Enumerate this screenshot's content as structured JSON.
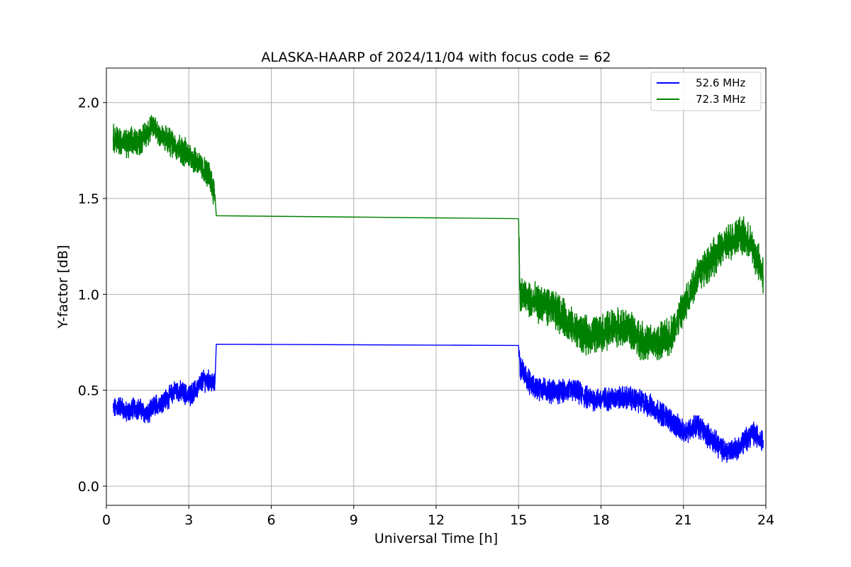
{
  "chart_data": {
    "type": "line",
    "title": "ALASKA-HAARP of 2024/11/04 with focus code = 62",
    "xlabel": "Universal Time [h]",
    "ylabel": "Y-factor [dB]",
    "xlim": [
      0,
      24
    ],
    "ylim": [
      -0.1,
      2.18
    ],
    "xticks": [
      0,
      3,
      6,
      9,
      12,
      15,
      18,
      21,
      24
    ],
    "xtick_labels": [
      "0",
      "3",
      "6",
      "9",
      "12",
      "15",
      "18",
      "21",
      "24"
    ],
    "yticks": [
      0.0,
      0.5,
      1.0,
      1.5,
      2.0
    ],
    "ytick_labels": [
      "0.0",
      "0.5",
      "1.0",
      "1.5",
      "2.0"
    ],
    "grid": true,
    "legend_position": "upper right",
    "series": [
      {
        "name": "52.6 MHz",
        "color": "#0000ff",
        "points": [
          [
            0.25,
            0.4
          ],
          [
            0.5,
            0.42
          ],
          [
            0.75,
            0.38
          ],
          [
            1.0,
            0.41
          ],
          [
            1.25,
            0.4
          ],
          [
            1.5,
            0.37
          ],
          [
            1.75,
            0.42
          ],
          [
            2.0,
            0.44
          ],
          [
            2.25,
            0.46
          ],
          [
            2.5,
            0.5
          ],
          [
            2.75,
            0.49
          ],
          [
            3.0,
            0.47
          ],
          [
            3.25,
            0.5
          ],
          [
            3.5,
            0.55
          ],
          [
            3.75,
            0.55
          ],
          [
            3.95,
            0.53
          ],
          [
            4.0,
            0.74
          ],
          [
            15.0,
            0.75
          ],
          [
            15.05,
            0.62
          ],
          [
            15.5,
            0.52
          ],
          [
            16.0,
            0.5
          ],
          [
            16.5,
            0.49
          ],
          [
            17.0,
            0.5
          ],
          [
            17.5,
            0.46
          ],
          [
            18.0,
            0.45
          ],
          [
            18.5,
            0.46
          ],
          [
            19.0,
            0.46
          ],
          [
            19.5,
            0.44
          ],
          [
            20.0,
            0.4
          ],
          [
            20.5,
            0.35
          ],
          [
            21.0,
            0.28
          ],
          [
            21.5,
            0.32
          ],
          [
            22.0,
            0.25
          ],
          [
            22.5,
            0.18
          ],
          [
            23.0,
            0.2
          ],
          [
            23.5,
            0.28
          ],
          [
            23.9,
            0.24
          ]
        ],
        "noise": [
          0.045,
          0.045,
          0.045,
          0.045,
          0.045,
          0.045,
          0.045,
          0.045,
          0.045,
          0.045,
          0.045,
          0.045,
          0.045,
          0.045,
          0.045,
          0.045,
          0.0,
          0.0,
          0.05,
          0.05,
          0.05,
          0.05,
          0.05,
          0.05,
          0.05,
          0.05,
          0.05,
          0.05,
          0.05,
          0.05,
          0.05,
          0.05,
          0.05,
          0.05,
          0.05,
          0.05,
          0.05
        ]
      },
      {
        "name": "72.3 MHz",
        "color": "#008000",
        "points": [
          [
            0.25,
            1.82
          ],
          [
            0.5,
            1.8
          ],
          [
            0.75,
            1.78
          ],
          [
            1.0,
            1.8
          ],
          [
            1.25,
            1.8
          ],
          [
            1.5,
            1.85
          ],
          [
            1.75,
            1.88
          ],
          [
            2.0,
            1.82
          ],
          [
            2.25,
            1.8
          ],
          [
            2.5,
            1.78
          ],
          [
            2.75,
            1.75
          ],
          [
            3.0,
            1.73
          ],
          [
            3.25,
            1.7
          ],
          [
            3.5,
            1.65
          ],
          [
            3.75,
            1.62
          ],
          [
            3.95,
            1.52
          ],
          [
            4.0,
            1.41
          ],
          [
            15.0,
            1.41
          ],
          [
            15.05,
            1.0
          ],
          [
            15.5,
            0.96
          ],
          [
            16.0,
            0.94
          ],
          [
            16.5,
            0.9
          ],
          [
            17.0,
            0.82
          ],
          [
            17.5,
            0.78
          ],
          [
            18.0,
            0.8
          ],
          [
            18.5,
            0.83
          ],
          [
            19.0,
            0.82
          ],
          [
            19.5,
            0.76
          ],
          [
            20.0,
            0.74
          ],
          [
            20.5,
            0.78
          ],
          [
            21.0,
            0.92
          ],
          [
            21.5,
            1.1
          ],
          [
            22.0,
            1.18
          ],
          [
            22.5,
            1.25
          ],
          [
            23.0,
            1.32
          ],
          [
            23.5,
            1.25
          ],
          [
            23.9,
            1.1
          ]
        ],
        "noise": [
          0.06,
          0.06,
          0.06,
          0.06,
          0.06,
          0.06,
          0.06,
          0.06,
          0.06,
          0.06,
          0.06,
          0.06,
          0.06,
          0.06,
          0.06,
          0.06,
          0.0,
          0.0,
          0.08,
          0.08,
          0.08,
          0.08,
          0.08,
          0.08,
          0.08,
          0.08,
          0.08,
          0.08,
          0.08,
          0.08,
          0.08,
          0.08,
          0.08,
          0.08,
          0.08,
          0.08,
          0.08
        ]
      }
    ]
  }
}
